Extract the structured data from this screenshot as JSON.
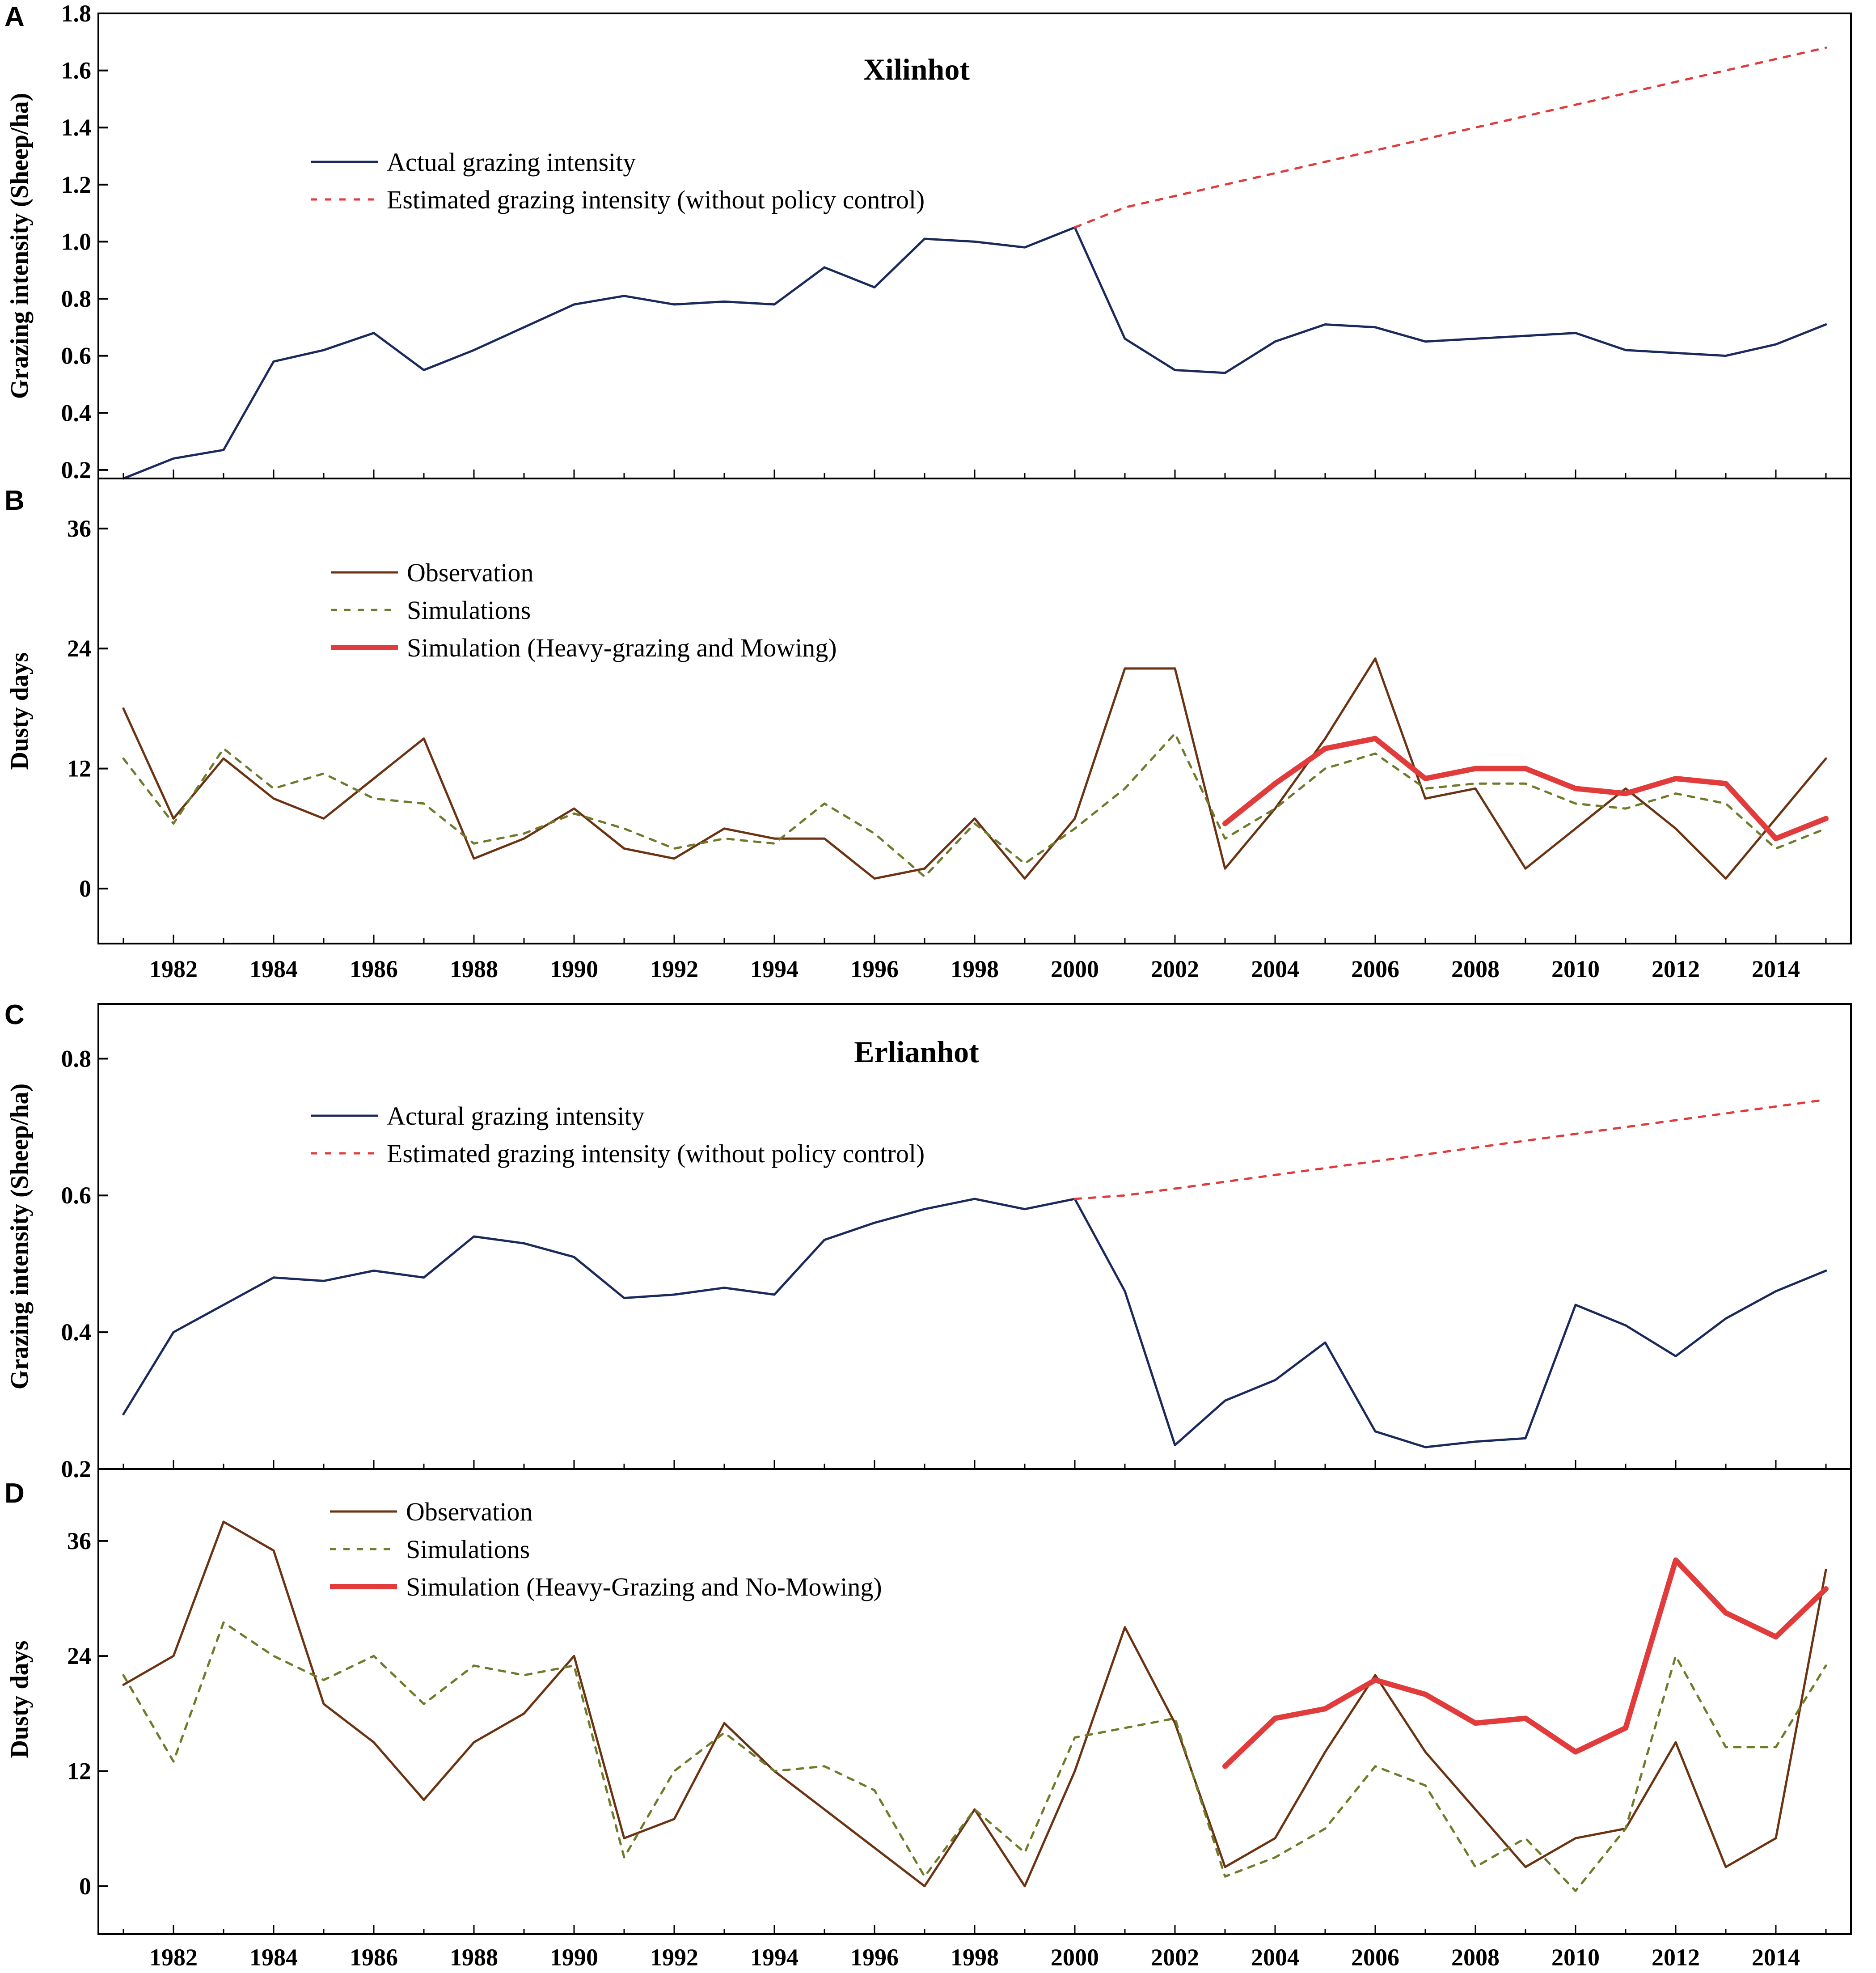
{
  "colors": {
    "actual": "#1b2a5c",
    "estimated": "#e23b3b",
    "observation": "#6b3312",
    "simulations": "#6f7a2a",
    "sim_special": "#e23b3b"
  },
  "x_tick_labels": [
    "1982",
    "1984",
    "1986",
    "1988",
    "1990",
    "1992",
    "1994",
    "1996",
    "1998",
    "2000",
    "2002",
    "2004",
    "2006",
    "2008",
    "2010",
    "2012",
    "2014"
  ],
  "chart_data": [
    {
      "panel": "A",
      "type": "line",
      "title": "Xilinhot",
      "ylabel": "Grazing intensity (Sheep/ha)",
      "ylim": [
        0.17,
        1.8
      ],
      "yticks": [
        0.2,
        0.4,
        0.6,
        0.8,
        1.0,
        1.2,
        1.4,
        1.6,
        1.8
      ],
      "ytick_labels": [
        "0.2",
        "0.4",
        "0.6",
        "0.8",
        "1.0",
        "1.2",
        "1.4",
        "1.6",
        "1.8"
      ],
      "legend": [
        "Actual grazing intensity",
        "Estimated grazing intensity (without policy control)"
      ],
      "series": [
        {
          "name": "Actual grazing intensity",
          "style": "actual",
          "x": [
            1981,
            1982,
            1983,
            1984,
            1985,
            1986,
            1987,
            1988,
            1989,
            1990,
            1991,
            1992,
            1993,
            1994,
            1995,
            1996,
            1997,
            1998,
            1999,
            2000,
            2001,
            2002,
            2003,
            2004,
            2005,
            2006,
            2007,
            2008,
            2009,
            2010,
            2011,
            2012,
            2013,
            2014,
            2015
          ],
          "values": [
            0.17,
            0.24,
            0.27,
            0.58,
            0.62,
            0.68,
            0.55,
            0.62,
            0.7,
            0.78,
            0.81,
            0.78,
            0.79,
            0.78,
            0.91,
            0.84,
            1.01,
            1.0,
            0.98,
            1.05,
            0.66,
            0.55,
            0.54,
            0.65,
            0.71,
            0.7,
            0.65,
            0.66,
            0.67,
            0.68,
            0.62,
            0.61,
            0.6,
            0.64,
            0.71
          ]
        },
        {
          "name": "Estimated grazing intensity (without policy control)",
          "style": "estimated",
          "x": [
            2000,
            2001,
            2002,
            2003,
            2004,
            2005,
            2006,
            2007,
            2008,
            2009,
            2010,
            2011,
            2012,
            2013,
            2014,
            2015
          ],
          "values": [
            1.05,
            1.12,
            1.16,
            1.2,
            1.24,
            1.28,
            1.32,
            1.36,
            1.4,
            1.44,
            1.48,
            1.52,
            1.56,
            1.6,
            1.64,
            1.68
          ]
        }
      ]
    },
    {
      "panel": "B",
      "type": "line",
      "ylabel": "Dusty days",
      "ylim": [
        -5.5,
        41
      ],
      "yticks": [
        0,
        12,
        24,
        36
      ],
      "ytick_labels": [
        "0",
        "12",
        "24",
        "36"
      ],
      "legend": [
        "Observation",
        "Simulations",
        "Simulation (Heavy-grazing and Mowing)"
      ],
      "series": [
        {
          "name": "Observation",
          "style": "observation",
          "x": [
            1981,
            1982,
            1983,
            1984,
            1985,
            1986,
            1987,
            1988,
            1989,
            1990,
            1991,
            1992,
            1993,
            1994,
            1995,
            1996,
            1997,
            1998,
            1999,
            2000,
            2001,
            2002,
            2003,
            2004,
            2005,
            2006,
            2007,
            2008,
            2009,
            2010,
            2011,
            2012,
            2013,
            2014,
            2015
          ],
          "values": [
            18,
            7,
            13,
            9,
            7,
            11,
            15,
            3,
            5,
            8,
            4,
            3,
            6,
            5,
            5,
            1,
            2,
            7,
            1,
            7,
            22,
            22,
            2,
            8,
            15,
            23,
            9,
            10,
            2,
            6,
            10,
            6,
            1,
            7,
            13
          ]
        },
        {
          "name": "Simulations",
          "style": "simulations",
          "x": [
            1981,
            1982,
            1983,
            1984,
            1985,
            1986,
            1987,
            1988,
            1989,
            1990,
            1991,
            1992,
            1993,
            1994,
            1995,
            1996,
            1997,
            1998,
            1999,
            2000,
            2001,
            2002,
            2003,
            2004,
            2005,
            2006,
            2007,
            2008,
            2009,
            2010,
            2011,
            2012,
            2013,
            2014,
            2015
          ],
          "values": [
            13,
            6.5,
            14,
            10,
            11.5,
            9,
            8.5,
            4.5,
            5.5,
            7.5,
            6,
            4,
            5,
            4.5,
            8.5,
            5.5,
            1.2,
            6.5,
            2.5,
            6,
            10,
            15.5,
            5,
            8,
            12,
            13.5,
            10,
            10.5,
            10.5,
            8.5,
            8,
            9.5,
            8.5,
            4,
            6
          ]
        },
        {
          "name": "Simulation (Heavy-grazing and Mowing)",
          "style": "sim_special",
          "x": [
            2003,
            2004,
            2005,
            2006,
            2007,
            2008,
            2009,
            2010,
            2011,
            2012,
            2013,
            2014,
            2015
          ],
          "values": [
            6.5,
            10.5,
            14,
            15,
            11,
            12,
            12,
            10,
            9.5,
            11,
            10.5,
            5,
            7
          ]
        }
      ]
    },
    {
      "panel": "C",
      "type": "line",
      "title": "Erlianhot",
      "ylabel": "Grazing intensity (Sheep/ha)",
      "ylim": [
        0.2,
        0.88
      ],
      "yticks": [
        0.2,
        0.4,
        0.6,
        0.8
      ],
      "ytick_labels": [
        "0.2",
        "0.4",
        "0.6",
        "0.8"
      ],
      "legend": [
        "Actural grazing intensity",
        "Estimated grazing intensity (without policy control)"
      ],
      "series": [
        {
          "name": "Actural grazing intensity",
          "style": "actual",
          "x": [
            1981,
            1982,
            1983,
            1984,
            1985,
            1986,
            1987,
            1988,
            1989,
            1990,
            1991,
            1992,
            1993,
            1994,
            1995,
            1996,
            1997,
            1998,
            1999,
            2000,
            2001,
            2002,
            2003,
            2004,
            2005,
            2006,
            2007,
            2008,
            2009,
            2010,
            2011,
            2012,
            2013,
            2014,
            2015
          ],
          "values": [
            0.28,
            0.4,
            0.44,
            0.48,
            0.475,
            0.49,
            0.48,
            0.54,
            0.53,
            0.51,
            0.45,
            0.455,
            0.465,
            0.455,
            0.535,
            0.56,
            0.58,
            0.595,
            0.58,
            0.595,
            0.46,
            0.235,
            0.3,
            0.33,
            0.385,
            0.255,
            0.232,
            0.24,
            0.245,
            0.44,
            0.41,
            0.365,
            0.42,
            0.46,
            0.49
          ]
        },
        {
          "name": "Estimated grazing intensity (without policy control)",
          "style": "estimated",
          "x": [
            2000,
            2001,
            2002,
            2003,
            2004,
            2005,
            2006,
            2007,
            2008,
            2009,
            2010,
            2011,
            2012,
            2013,
            2014,
            2015
          ],
          "values": [
            0.595,
            0.6,
            0.61,
            0.62,
            0.63,
            0.64,
            0.65,
            0.66,
            0.67,
            0.68,
            0.69,
            0.7,
            0.71,
            0.72,
            0.73,
            0.74
          ]
        }
      ]
    },
    {
      "panel": "D",
      "type": "line",
      "ylabel": "Dusty days",
      "ylim": [
        -5,
        43.5
      ],
      "yticks": [
        0,
        12,
        24,
        36
      ],
      "ytick_labels": [
        "0",
        "12",
        "24",
        "36"
      ],
      "legend": [
        "Observation",
        "Simulations",
        "Simulation (Heavy-Grazing and No-Mowing)"
      ],
      "series": [
        {
          "name": "Observation",
          "style": "observation",
          "x": [
            1981,
            1982,
            1983,
            1984,
            1985,
            1986,
            1987,
            1988,
            1989,
            1990,
            1991,
            1992,
            1993,
            1994,
            1995,
            1996,
            1997,
            1998,
            1999,
            2000,
            2001,
            2002,
            2003,
            2004,
            2005,
            2006,
            2007,
            2008,
            2009,
            2010,
            2011,
            2012,
            2013,
            2014,
            2015
          ],
          "values": [
            21,
            24,
            38,
            35,
            19,
            15,
            9,
            15,
            18,
            24,
            5,
            7,
            17,
            12,
            8,
            4,
            0,
            8,
            0,
            12,
            27,
            17,
            2,
            5,
            14,
            22,
            14,
            8,
            2,
            5,
            6,
            15,
            2,
            5,
            33
          ]
        },
        {
          "name": "Simulations",
          "style": "simulations",
          "x": [
            1981,
            1982,
            1983,
            1984,
            1985,
            1986,
            1987,
            1988,
            1989,
            1990,
            1991,
            1992,
            1993,
            1994,
            1995,
            1996,
            1997,
            1998,
            1999,
            2000,
            2001,
            2002,
            2003,
            2004,
            2005,
            2006,
            2007,
            2008,
            2009,
            2010,
            2011,
            2012,
            2013,
            2014,
            2015
          ],
          "values": [
            22,
            13,
            27.5,
            24,
            21.5,
            24,
            19,
            23,
            22,
            23,
            3,
            12,
            16,
            12,
            12.5,
            10,
            1,
            8,
            3.5,
            15.5,
            16.5,
            17.5,
            1,
            3,
            6,
            12.5,
            10.5,
            2,
            5,
            -0.5,
            6,
            24,
            14.5,
            14.5,
            23
          ]
        },
        {
          "name": "Simulation (Heavy-Grazing and No-Mowing)",
          "style": "sim_special",
          "x": [
            2003,
            2004,
            2005,
            2006,
            2007,
            2008,
            2009,
            2010,
            2011,
            2012,
            2013,
            2014,
            2015
          ],
          "values": [
            12.5,
            17.5,
            18.5,
            21.5,
            20,
            17,
            17.5,
            14,
            16.5,
            34,
            28.5,
            26,
            31
          ]
        }
      ]
    }
  ]
}
